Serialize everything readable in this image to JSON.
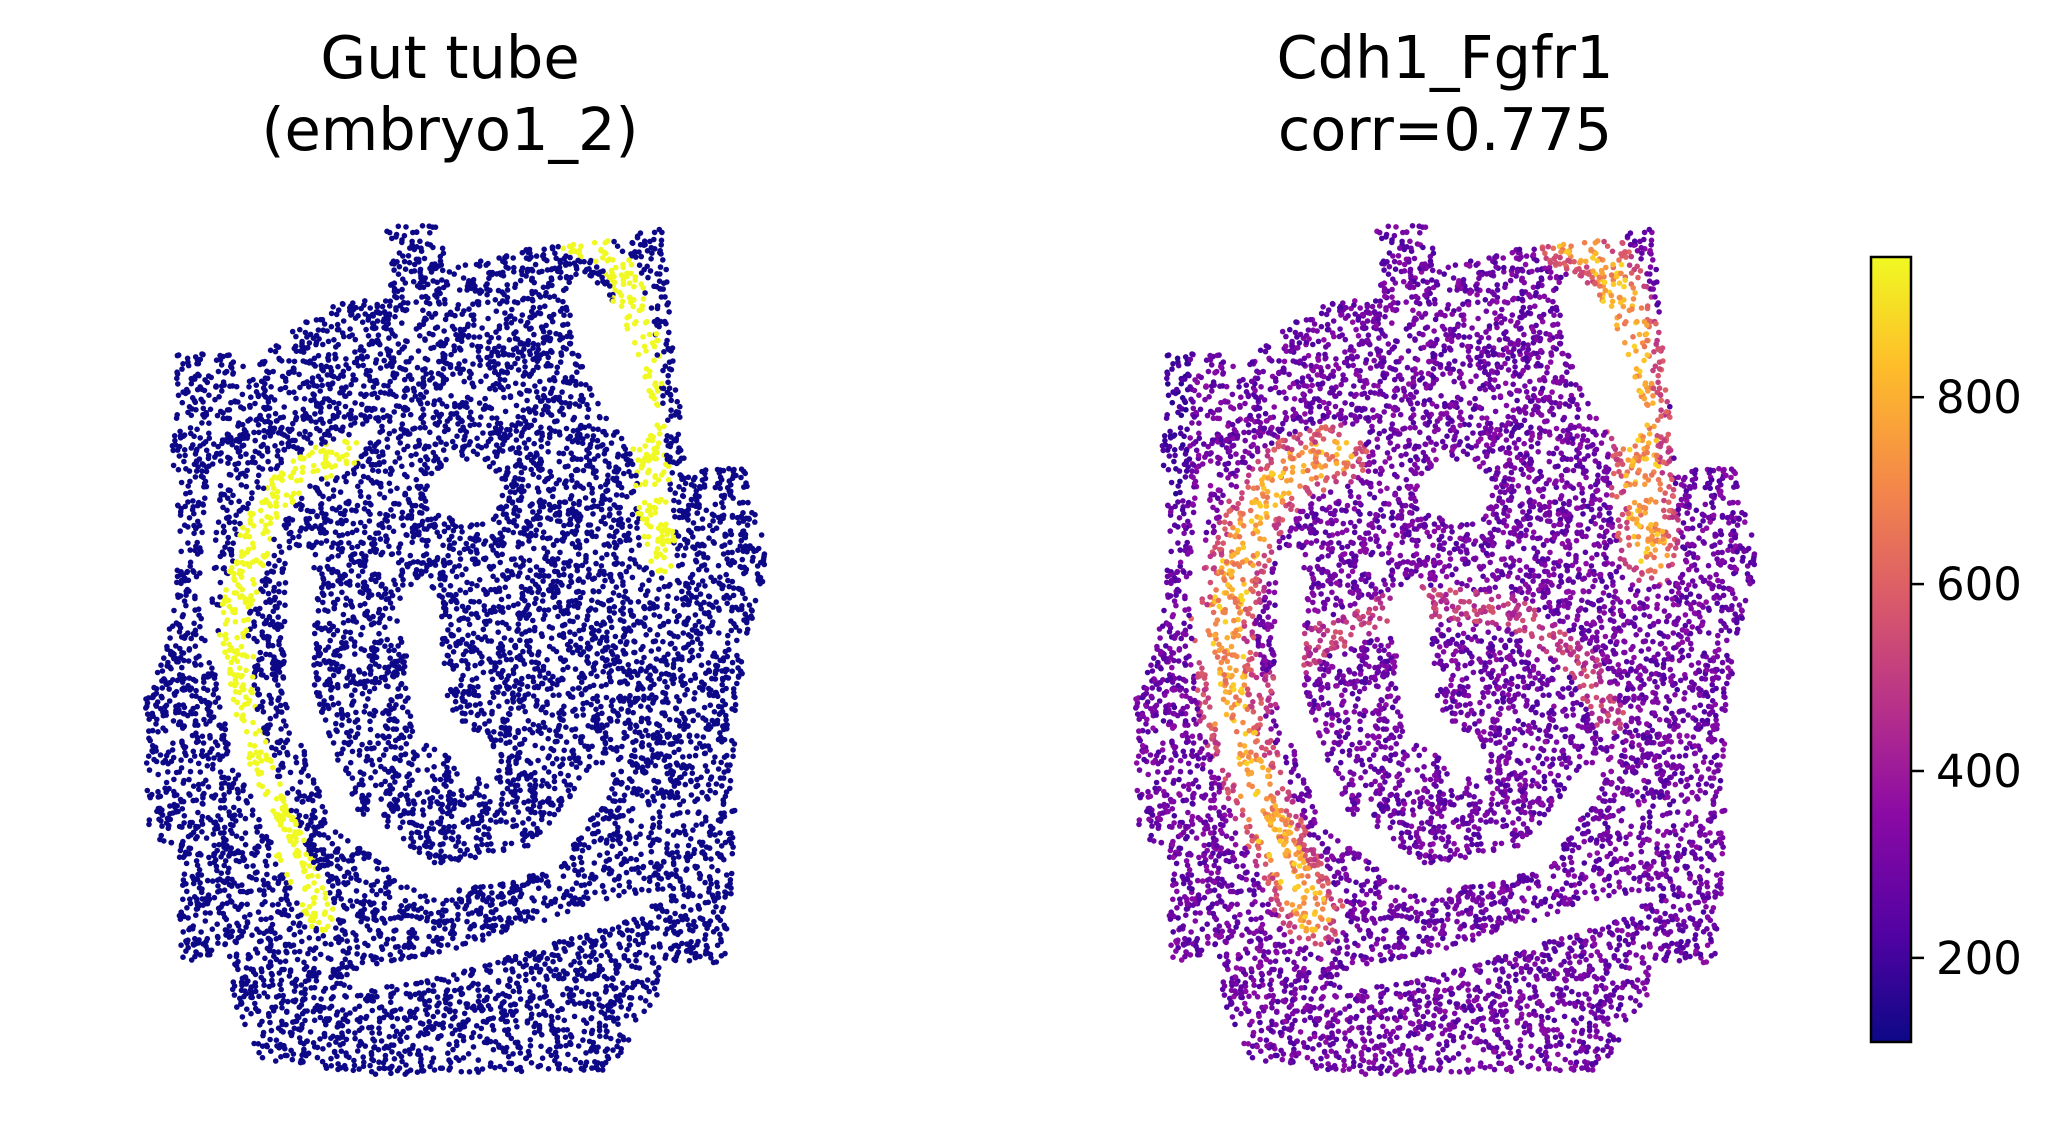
{
  "chart_data": [
    {
      "type": "scatter",
      "title": "Gut tube\n(embryo1_2)",
      "title_lines": [
        "Gut tube",
        "(embryo1_2)"
      ],
      "xlabel": "",
      "ylabel": "",
      "axes_visible": false,
      "grid": false,
      "colors": {
        "background_cells": "#0d0887",
        "highlight_cells": "#f0f921"
      },
      "series": [
        {
          "name": "",
          "role": "other cells",
          "color": "#0d0887"
        },
        {
          "name": "",
          "role": "gut tube cells",
          "color": "#f0f921"
        }
      ]
    },
    {
      "type": "scatter",
      "title": "Cdh1_Fgfr1\ncorr=0.775",
      "title_lines": [
        "Cdh1_Fgfr1",
        "corr=0.775"
      ],
      "xlabel": "",
      "ylabel": "",
      "axes_visible": false,
      "grid": false,
      "colormap": "plasma",
      "colorbar": {
        "range": [
          110,
          950
        ],
        "ticks": [
          200,
          400,
          600,
          800
        ],
        "tick_labels": [
          "200",
          "400",
          "600",
          "800"
        ],
        "placement": "right"
      }
    }
  ],
  "colormap_stops": [
    "#0d0887",
    "#5302a3",
    "#8b0aa5",
    "#b83289",
    "#db5c68",
    "#f48849",
    "#febd2a",
    "#f0f921"
  ]
}
